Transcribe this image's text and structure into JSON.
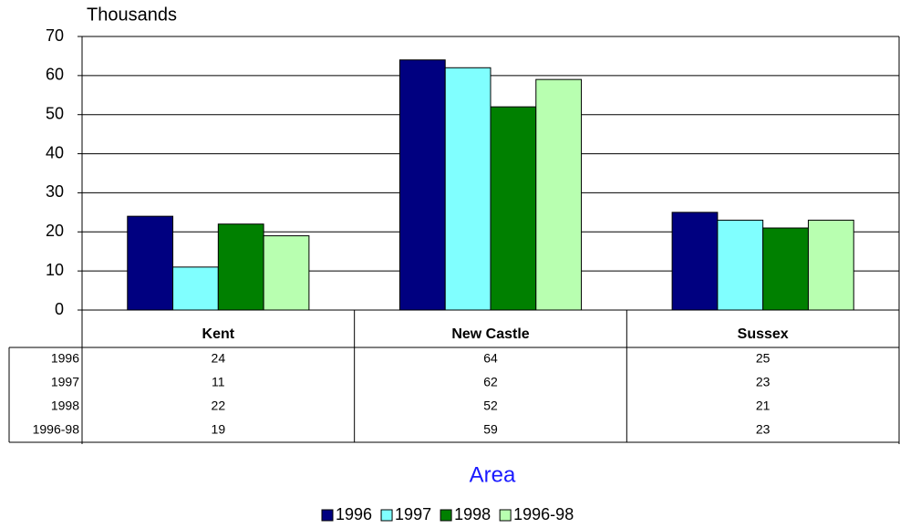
{
  "chart_data": {
    "type": "bar",
    "y_label": "Thousands",
    "x_label": "Area",
    "categories": [
      "Kent",
      "New Castle",
      "Sussex"
    ],
    "series": [
      {
        "name": "1996",
        "color": "#000080",
        "values": [
          24,
          64,
          25
        ]
      },
      {
        "name": "1997",
        "color": "#80ffff",
        "values": [
          11,
          62,
          23
        ]
      },
      {
        "name": "1998",
        "color": "#008000",
        "values": [
          22,
          52,
          21
        ]
      },
      {
        "name": "1996-98",
        "color": "#b8ffb0",
        "values": [
          19,
          59,
          23
        ]
      }
    ],
    "ylim": [
      0,
      70
    ],
    "yticks": [
      0,
      10,
      20,
      30,
      40,
      50,
      60,
      70
    ],
    "grid": true,
    "data_table": true,
    "legend": "bottom"
  }
}
